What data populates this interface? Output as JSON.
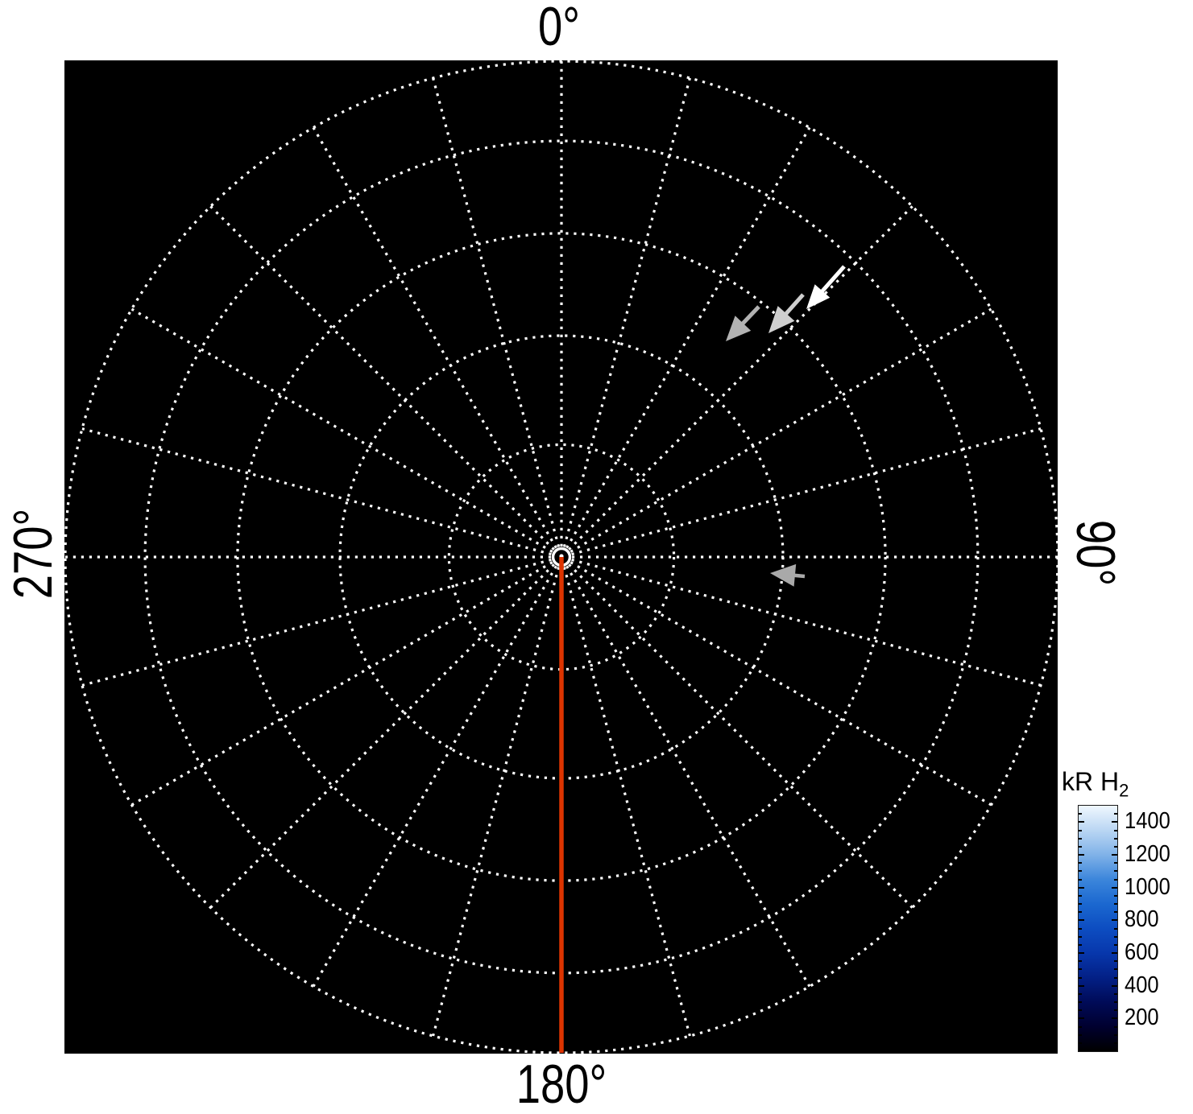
{
  "figure": {
    "background_color": "#ffffff",
    "plot_background_color": "#000000",
    "grid_color": "#ffffff"
  },
  "chart_data": {
    "type": "polar_map",
    "description": "Polar orthographic-projection map of H2 auroral emission brightness on a black background with a dotted polar coordinate grid; no emission above threshold is visible (map is dark), with annotation arrows and a red reference meridian at 180 degrees",
    "angle_labels": {
      "top": "0°",
      "right": "90°",
      "bottom": "180°",
      "left": "270°"
    },
    "projection": {
      "kind": "orthographic-polar",
      "colatitude_circles_deg": [
        10,
        20,
        30,
        40,
        50
      ],
      "max_colatitude_deg": 50,
      "meridian_step_deg": 15,
      "grid_line_style": "dotted"
    },
    "reference_meridian": {
      "angle_deg": 180,
      "color": "#dd3400"
    },
    "center_marker_color": "#ffffff",
    "annotation_arrows": [
      {
        "name": "arrow-white",
        "color": "#ffffff",
        "tail": [
          1048,
          331
        ],
        "tip": [
          1001,
          384
        ],
        "head_length": 30,
        "head_width": 25,
        "shaft_width": 5
      },
      {
        "name": "arrow-light-gray",
        "color": "#cfcfcf",
        "tail": [
          997,
          366
        ],
        "tip": [
          954,
          414
        ],
        "head_length": 33,
        "head_width": 28,
        "shaft_width": 5
      },
      {
        "name": "arrow-gray",
        "color": "#b2b2b2",
        "tail": [
          942,
          381
        ],
        "tip": [
          901,
          424
        ],
        "head_length": 31,
        "head_width": 27,
        "shaft_width": 5
      },
      {
        "name": "arrow-small-gray",
        "color": "#a9a9a9",
        "tail": [
          999,
          716
        ],
        "tip": [
          956,
          712
        ],
        "head_length": 31,
        "head_width": 28,
        "shaft_width": 4.5
      }
    ],
    "colorbar": {
      "title_main": "kR H",
      "title_sub": "2",
      "unit": "kR H2",
      "tick_values": [
        1400,
        1200,
        1000,
        800,
        600,
        400,
        200
      ],
      "minor_tick_step": 50,
      "major_tick_step": 200,
      "value_range": [
        0,
        1500
      ],
      "gradient_stops_bottom_to_top": [
        {
          "v": 0,
          "c": "#000000"
        },
        {
          "v": 150,
          "c": "#00002f"
        },
        {
          "v": 300,
          "c": "#000b58"
        },
        {
          "v": 450,
          "c": "#032086"
        },
        {
          "v": 600,
          "c": "#0737ac"
        },
        {
          "v": 750,
          "c": "#0d4dc1"
        },
        {
          "v": 900,
          "c": "#1b68d0"
        },
        {
          "v": 1050,
          "c": "#3c86db"
        },
        {
          "v": 1200,
          "c": "#80b2e8"
        },
        {
          "v": 1350,
          "c": "#bad6f3"
        },
        {
          "v": 1500,
          "c": "#eff7fe"
        }
      ]
    }
  }
}
